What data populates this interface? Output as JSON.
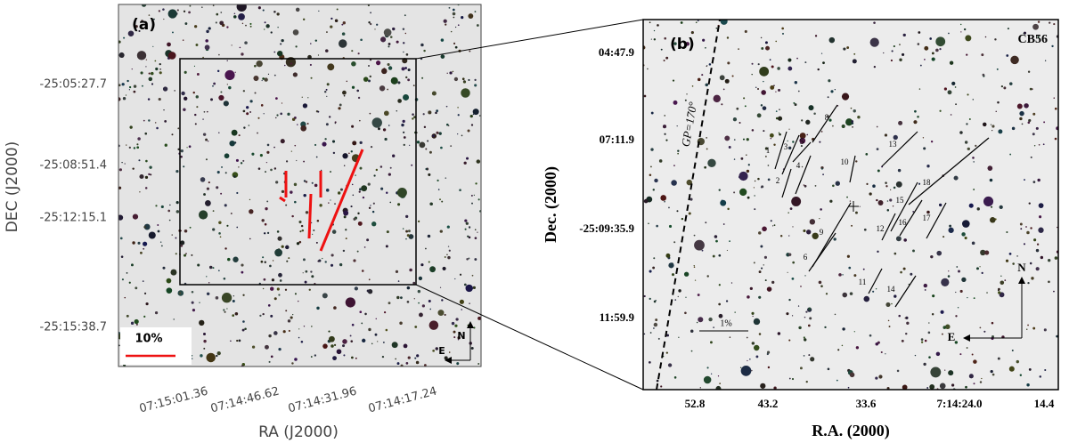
{
  "panel_a": {
    "label": "(a)",
    "x_label": "RA (J2000)",
    "y_label": "DEC (J2000)",
    "x_ticks": [
      "07:15:01.36",
      "07:14:46.62",
      "07:14:31.96",
      "07:14:17.24"
    ],
    "y_ticks": [
      "-25:05:27.7",
      "-25:08:51.4",
      "-25:12:15.1",
      "-25:15:38.7"
    ],
    "scale_label": "10%",
    "compass": {
      "north": "N",
      "east": "E"
    }
  },
  "panel_b": {
    "label": "(b)",
    "name": "CB56",
    "x_label": "R.A. (2000)",
    "y_label": "Dec. (2000)",
    "x_ticks": [
      "52.8",
      "43.2",
      "33.6",
      "7:14:24.0",
      "14.4"
    ],
    "y_ticks": [
      "04:47.9",
      "07:11.9",
      "-25:09:35.9",
      "11:59.9"
    ],
    "gp_label": "GP=170°",
    "scale_label": "1%",
    "compass": {
      "north": "N",
      "east": "E"
    },
    "star_ids": [
      "1",
      "2",
      "3",
      "4",
      "5",
      "6",
      "8",
      "9",
      "10",
      "11",
      "12",
      "13",
      "14",
      "15",
      "16",
      "17",
      "18"
    ]
  }
}
